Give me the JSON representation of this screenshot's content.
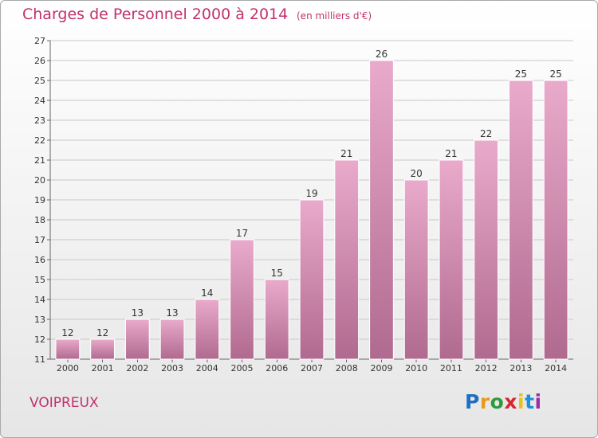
{
  "header": {
    "title": "Charges de Personnel 2000 à 2014",
    "subtitle": "(en milliers d'€)"
  },
  "footer": {
    "place": "VOIPREUX",
    "logo_text": "Proxiti",
    "logo_colors": [
      "#1f6fc0",
      "#e89a1b",
      "#2f9a3b",
      "#d8262f",
      "#e8c11b",
      "#1f8fd8",
      "#9b2fa8"
    ]
  },
  "colors": {
    "bar_top": "#e9aacb",
    "bar_bottom": "#b06a8f",
    "grid": "#c8c8c8",
    "title": "#c2316c"
  },
  "chart_data": {
    "type": "bar",
    "categories": [
      "2000",
      "2001",
      "2002",
      "2003",
      "2004",
      "2005",
      "2006",
      "2007",
      "2008",
      "2009",
      "2010",
      "2011",
      "2012",
      "2013",
      "2014"
    ],
    "values": [
      12,
      12,
      13,
      13,
      14,
      17,
      15,
      19,
      21,
      26,
      20,
      21,
      22,
      25,
      25
    ],
    "ylim": [
      11,
      27
    ],
    "yticks": [
      11,
      12,
      13,
      14,
      15,
      16,
      17,
      18,
      19,
      20,
      21,
      22,
      23,
      24,
      25,
      26,
      27
    ],
    "grid": true,
    "data_labels": true
  }
}
